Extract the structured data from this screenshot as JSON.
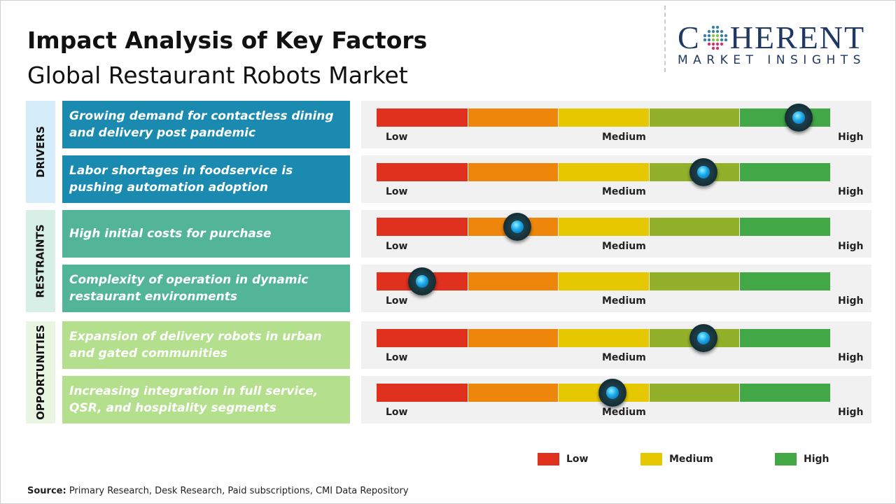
{
  "title": "Impact Analysis of Key Factors",
  "subtitle": "Global Restaurant Robots Market",
  "logo": {
    "main_left": "C",
    "main_right": "HERENT",
    "sub": "MARKET INSIGHTS"
  },
  "scale_labels": {
    "low": "Low",
    "medium": "Medium",
    "high": "High"
  },
  "segment_colors": [
    "#e0301e",
    "#ef860c",
    "#e6c800",
    "#93b02a",
    "#41a845"
  ],
  "chart_data": {
    "type": "table",
    "scale": "Low-Medium-High impact gauge (0 = Low, 1 = High)",
    "groups": [
      {
        "name": "DRIVERS",
        "bg": "#d5edf8",
        "box": "#1a8ab0",
        "factors": [
          {
            "label": "Growing demand for contactless dining and delivery post pandemic",
            "impact": 0.93
          },
          {
            "label": "Labor shortages in foodservice is pushing automation adoption",
            "impact": 0.72
          }
        ]
      },
      {
        "name": "RESTRAINTS",
        "bg": "#d8efe8",
        "box": "#52b597",
        "factors": [
          {
            "label": "High initial costs for purchase",
            "impact": 0.31
          },
          {
            "label": "Complexity of operation in dynamic restaurant environments",
            "impact": 0.1
          }
        ]
      },
      {
        "name": "OPPORTUNITIES",
        "bg": "#e9f6e2",
        "box": "#b4df8c",
        "factors": [
          {
            "label": "Expansion of delivery robots in urban and gated communities",
            "impact": 0.72
          },
          {
            "label": "Increasing integration in full service, QSR, and hospitality segments",
            "impact": 0.52
          }
        ]
      }
    ],
    "legend": [
      {
        "label": "Low",
        "color": "#e0301e"
      },
      {
        "label": "Medium",
        "color": "#e6c800"
      },
      {
        "label": "High",
        "color": "#41a845"
      }
    ]
  },
  "source": {
    "label": "Source:",
    "text": " Primary Research, Desk Research, Paid subscriptions, CMI Data Repository"
  }
}
